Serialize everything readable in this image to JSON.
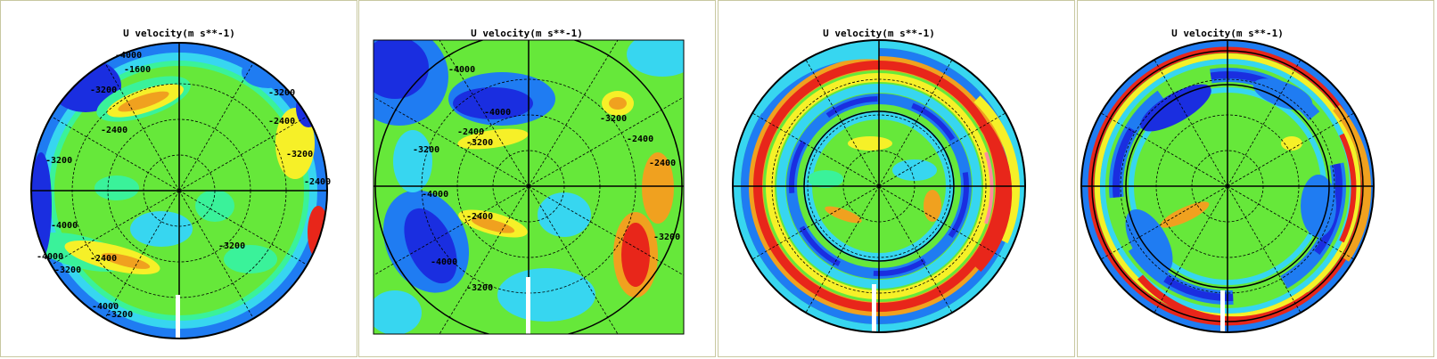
{
  "chart_data": [
    {
      "type": "heatmap",
      "title": "U velocity(m s**-1)",
      "projection": "polar stereographic, circular domain",
      "annotations": [
        "-4000",
        "-3200",
        "-2400",
        "-1600",
        "-3200",
        "-4000",
        "-3200",
        "-2400",
        "-3200",
        "-2400",
        "-3200",
        "-3200",
        "-2400",
        "-4000",
        "-3200",
        "-4000"
      ],
      "colors": [
        "#1a2ee0",
        "#1f7cf2",
        "#37d6f0",
        "#3af29a",
        "#66e83a",
        "#c6f040",
        "#f6f028",
        "#f0a11f",
        "#e8261a",
        "#ff8c9c"
      ]
    },
    {
      "type": "heatmap",
      "title": "U velocity(m s**-1)",
      "projection": "polar stereographic, square domain",
      "annotations": [
        "-4000",
        "-3200",
        "-4000",
        "-2400",
        "-3200",
        "-3200",
        "-2400",
        "-2400",
        "-3200",
        "-4000",
        "-4000",
        "-3200",
        "-2400"
      ],
      "colors": [
        "#1a2ee0",
        "#1f7cf2",
        "#37d6f0",
        "#3af29a",
        "#66e83a",
        "#c6f040",
        "#f6f028",
        "#f0a11f",
        "#e8261a",
        "#ff8c9c"
      ]
    },
    {
      "type": "heatmap",
      "title": "U velocity(m s**-1)",
      "projection": "polar stereographic, circular domain",
      "annotations": [],
      "colors": [
        "#1a2ee0",
        "#1f7cf2",
        "#37d6f0",
        "#3af29a",
        "#66e83a",
        "#c6f040",
        "#f6f028",
        "#f0a11f",
        "#e8261a",
        "#ff8c9c"
      ]
    },
    {
      "type": "heatmap",
      "title": "U velocity(m s**-1)",
      "projection": "polar stereographic, circular domain",
      "annotations": [],
      "colors": [
        "#1a2ee0",
        "#1f7cf2",
        "#37d6f0",
        "#3af29a",
        "#66e83a",
        "#c6f040",
        "#f6f028",
        "#f0a11f",
        "#e8261a",
        "#ff8c9c"
      ]
    }
  ]
}
